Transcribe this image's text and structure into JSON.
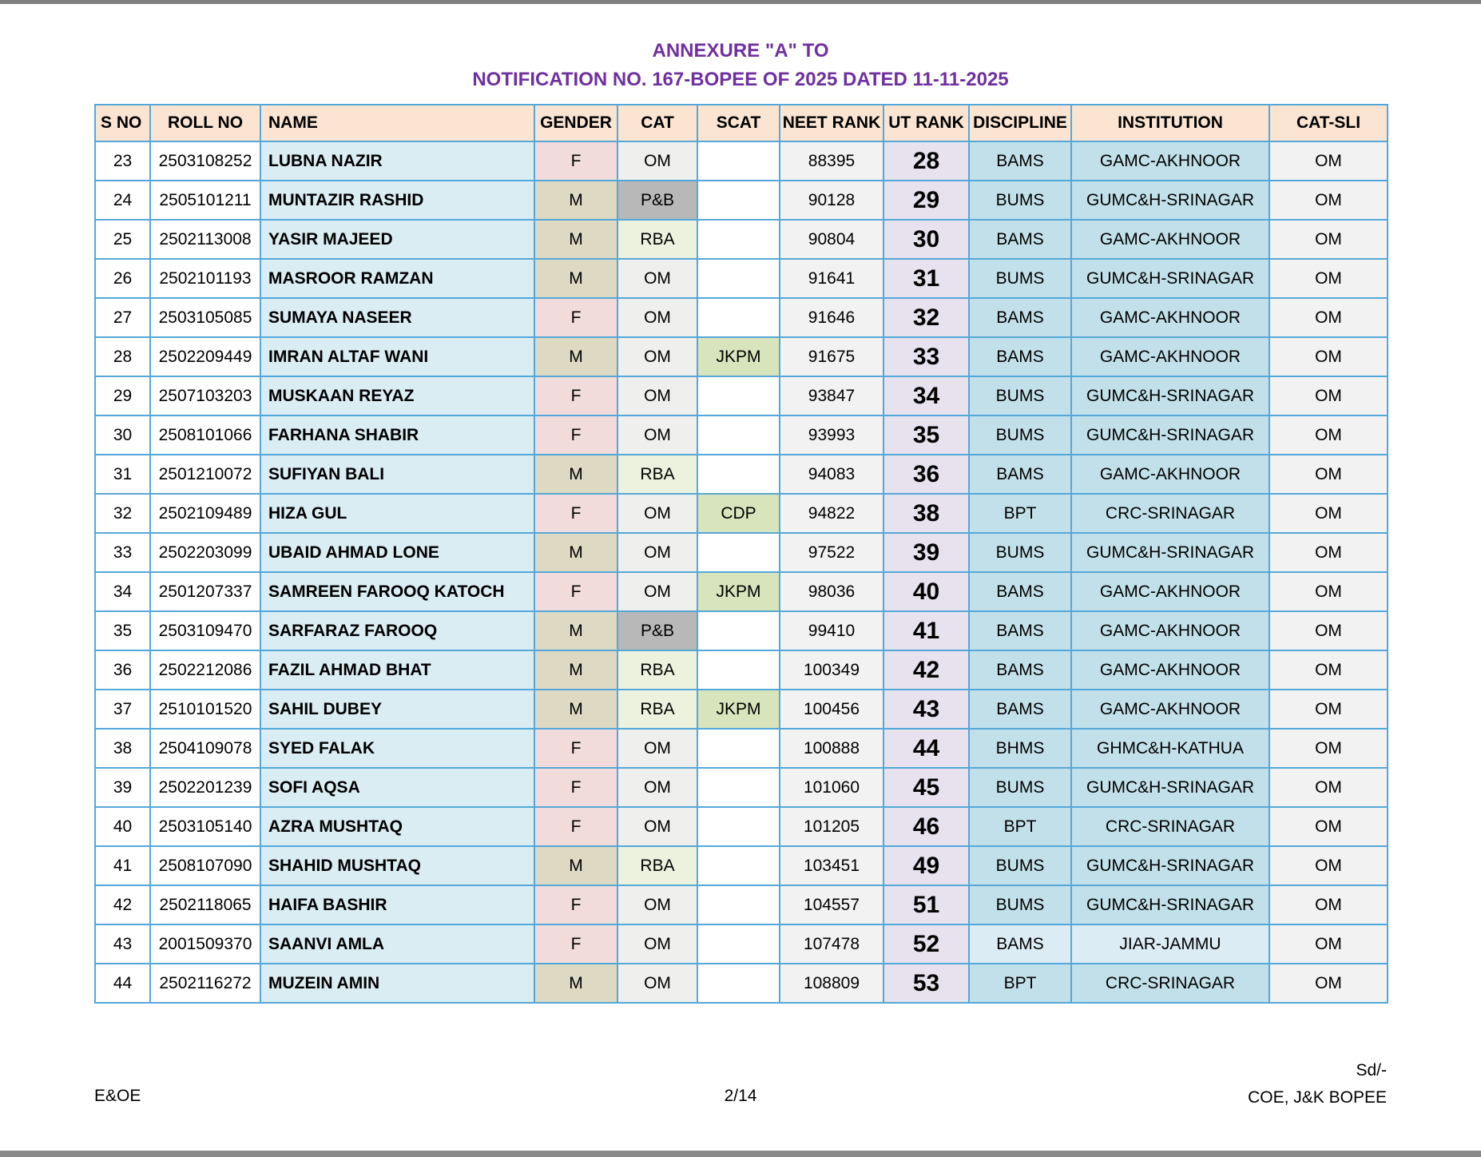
{
  "page": {
    "title_line1": "ANNEXURE \"A\" TO",
    "title_line2": "NOTIFICATION NO. 167-BOPEE OF 2025 DATED 11-11-2025",
    "footer": {
      "left": "E&OE",
      "center": "2/14",
      "right_line1": "Sd/-",
      "right_line2": "COE, J&K BOPEE"
    }
  },
  "colors": {
    "title_purple": "#7030a0",
    "table_border_blue": "#54a8d9",
    "header_peach": "#fbe5d2",
    "name_blue": "#daedf3",
    "gender_f_pink": "#f2dcdb",
    "gender_m_tan": "#ddd9c3",
    "cat_om_gray": "#efefed",
    "cat_pb_gray": "#b8b8b8",
    "cat_rba_green": "#edf2df",
    "scat_green": "#d8e4bc",
    "neet_gray": "#f2f2f2",
    "ut_lavender": "#e7e2ee",
    "institution_blue": "#c2e0ea",
    "institution_light_blue": "#dcecf4",
    "edge_gray": "#8a8a8a"
  },
  "table": {
    "headers": [
      "S NO",
      "ROLL NO",
      "NAME",
      "GENDER",
      "CAT",
      "SCAT",
      "NEET RANK",
      "UT RANK",
      "DISCIPLINE",
      "INSTITUTION",
      "CAT-SLI"
    ],
    "rows": [
      {
        "sno": "23",
        "roll": "2503108252",
        "name": "LUBNA NAZIR",
        "gender": "F",
        "cat": "OM",
        "scat": "",
        "neet": "88395",
        "ut": "28",
        "discipline": "BAMS",
        "institution": "GAMC-AKHNOOR",
        "catsli": "OM"
      },
      {
        "sno": "24",
        "roll": "2505101211",
        "name": "MUNTAZIR RASHID",
        "gender": "M",
        "cat": "P&B",
        "scat": "",
        "neet": "90128",
        "ut": "29",
        "discipline": "BUMS",
        "institution": "GUMC&H-SRINAGAR",
        "catsli": "OM"
      },
      {
        "sno": "25",
        "roll": "2502113008",
        "name": "YASIR MAJEED",
        "gender": "M",
        "cat": "RBA",
        "scat": "",
        "neet": "90804",
        "ut": "30",
        "discipline": "BAMS",
        "institution": "GAMC-AKHNOOR",
        "catsli": "OM"
      },
      {
        "sno": "26",
        "roll": "2502101193",
        "name": "MASROOR RAMZAN",
        "gender": "M",
        "cat": "OM",
        "scat": "",
        "neet": "91641",
        "ut": "31",
        "discipline": "BUMS",
        "institution": "GUMC&H-SRINAGAR",
        "catsli": "OM"
      },
      {
        "sno": "27",
        "roll": "2503105085",
        "name": "SUMAYA NASEER",
        "gender": "F",
        "cat": "OM",
        "scat": "",
        "neet": "91646",
        "ut": "32",
        "discipline": "BAMS",
        "institution": "GAMC-AKHNOOR",
        "catsli": "OM"
      },
      {
        "sno": "28",
        "roll": "2502209449",
        "name": "IMRAN ALTAF WANI",
        "gender": "M",
        "cat": "OM",
        "scat": "JKPM",
        "neet": "91675",
        "ut": "33",
        "discipline": "BAMS",
        "institution": "GAMC-AKHNOOR",
        "catsli": "OM"
      },
      {
        "sno": "29",
        "roll": "2507103203",
        "name": "MUSKAAN REYAZ",
        "gender": "F",
        "cat": "OM",
        "scat": "",
        "neet": "93847",
        "ut": "34",
        "discipline": "BUMS",
        "institution": "GUMC&H-SRINAGAR",
        "catsli": "OM"
      },
      {
        "sno": "30",
        "roll": "2508101066",
        "name": "FARHANA SHABIR",
        "gender": "F",
        "cat": "OM",
        "scat": "",
        "neet": "93993",
        "ut": "35",
        "discipline": "BUMS",
        "institution": "GUMC&H-SRINAGAR",
        "catsli": "OM"
      },
      {
        "sno": "31",
        "roll": "2501210072",
        "name": "SUFIYAN BALI",
        "gender": "M",
        "cat": "RBA",
        "scat": "",
        "neet": "94083",
        "ut": "36",
        "discipline": "BAMS",
        "institution": "GAMC-AKHNOOR",
        "catsli": "OM"
      },
      {
        "sno": "32",
        "roll": "2502109489",
        "name": "HIZA GUL",
        "gender": "F",
        "cat": "OM",
        "scat": "CDP",
        "neet": "94822",
        "ut": "38",
        "discipline": "BPT",
        "institution": "CRC-SRINAGAR",
        "catsli": "OM"
      },
      {
        "sno": "33",
        "roll": "2502203099",
        "name": "UBAID AHMAD LONE",
        "gender": "M",
        "cat": "OM",
        "scat": "",
        "neet": "97522",
        "ut": "39",
        "discipline": "BUMS",
        "institution": "GUMC&H-SRINAGAR",
        "catsli": "OM"
      },
      {
        "sno": "34",
        "roll": "2501207337",
        "name": "SAMREEN FAROOQ KATOCH",
        "gender": "F",
        "cat": "OM",
        "scat": "JKPM",
        "neet": "98036",
        "ut": "40",
        "discipline": "BAMS",
        "institution": "GAMC-AKHNOOR",
        "catsli": "OM"
      },
      {
        "sno": "35",
        "roll": "2503109470",
        "name": "SARFARAZ FAROOQ",
        "gender": "M",
        "cat": "P&B",
        "scat": "",
        "neet": "99410",
        "ut": "41",
        "discipline": "BAMS",
        "institution": "GAMC-AKHNOOR",
        "catsli": "OM"
      },
      {
        "sno": "36",
        "roll": "2502212086",
        "name": "FAZIL AHMAD BHAT",
        "gender": "M",
        "cat": "RBA",
        "scat": "",
        "neet": "100349",
        "ut": "42",
        "discipline": "BAMS",
        "institution": "GAMC-AKHNOOR",
        "catsli": "OM"
      },
      {
        "sno": "37",
        "roll": "2510101520",
        "name": "SAHIL DUBEY",
        "gender": "M",
        "cat": "RBA",
        "scat": "JKPM",
        "neet": "100456",
        "ut": "43",
        "discipline": "BAMS",
        "institution": "GAMC-AKHNOOR",
        "catsli": "OM"
      },
      {
        "sno": "38",
        "roll": "2504109078",
        "name": "SYED FALAK",
        "gender": "F",
        "cat": "OM",
        "scat": "",
        "neet": "100888",
        "ut": "44",
        "discipline": "BHMS",
        "institution": "GHMC&H-KATHUA",
        "catsli": "OM"
      },
      {
        "sno": "39",
        "roll": "2502201239",
        "name": "SOFI AQSA",
        "gender": "F",
        "cat": "OM",
        "scat": "",
        "neet": "101060",
        "ut": "45",
        "discipline": "BUMS",
        "institution": "GUMC&H-SRINAGAR",
        "catsli": "OM"
      },
      {
        "sno": "40",
        "roll": "2503105140",
        "name": "AZRA MUSHTAQ",
        "gender": "F",
        "cat": "OM",
        "scat": "",
        "neet": "101205",
        "ut": "46",
        "discipline": "BPT",
        "institution": "CRC-SRINAGAR",
        "catsli": "OM"
      },
      {
        "sno": "41",
        "roll": "2508107090",
        "name": "SHAHID MUSHTAQ",
        "gender": "M",
        "cat": "RBA",
        "scat": "",
        "neet": "103451",
        "ut": "49",
        "discipline": "BUMS",
        "institution": "GUMC&H-SRINAGAR",
        "catsli": "OM"
      },
      {
        "sno": "42",
        "roll": "2502118065",
        "name": "HAIFA BASHIR",
        "gender": "F",
        "cat": "OM",
        "scat": "",
        "neet": "104557",
        "ut": "51",
        "discipline": "BUMS",
        "institution": "GUMC&H-SRINAGAR",
        "catsli": "OM"
      },
      {
        "sno": "43",
        "roll": "2001509370",
        "name": "SAANVI AMLA",
        "gender": "F",
        "cat": "OM",
        "scat": "",
        "neet": "107478",
        "ut": "52",
        "discipline": "BAMS",
        "institution": "JIAR-JAMMU",
        "catsli": "OM",
        "light": true
      },
      {
        "sno": "44",
        "roll": "2502116272",
        "name": "MUZEIN AMIN",
        "gender": "M",
        "cat": "OM",
        "scat": "",
        "neet": "108809",
        "ut": "53",
        "discipline": "BPT",
        "institution": "CRC-SRINAGAR",
        "catsli": "OM"
      }
    ]
  }
}
